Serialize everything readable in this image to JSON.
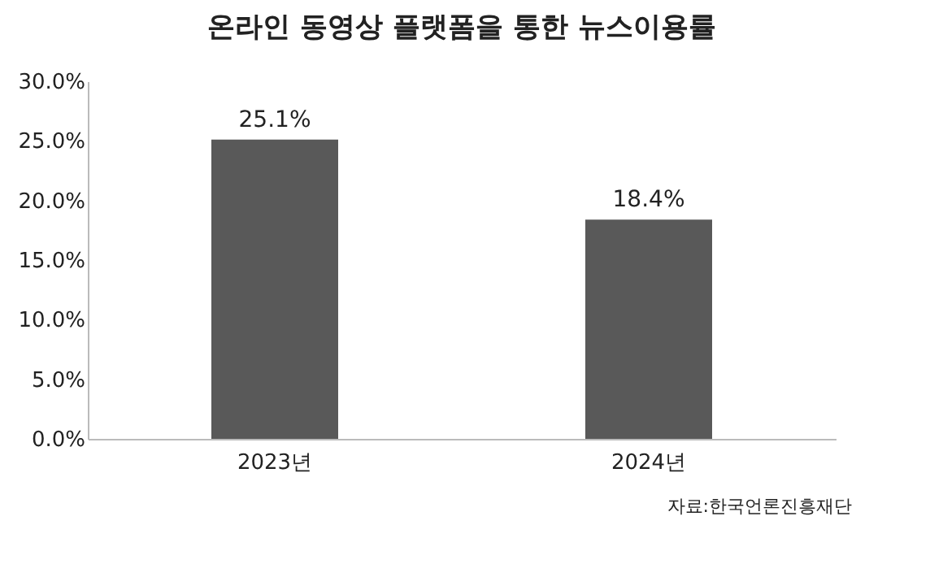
{
  "chart_data": {
    "type": "bar",
    "title": "온라인 동영상 플랫폼을 통한 뉴스이용률",
    "categories": [
      "2023년",
      "2024년"
    ],
    "values": [
      25.1,
      18.4
    ],
    "color": "#595959",
    "value_labels": [
      "25.1%",
      "18.4%"
    ],
    "ylim": [
      0,
      30
    ],
    "yticks": [
      {
        "value": 0,
        "label": "0.0%"
      },
      {
        "value": 5,
        "label": "5.0%"
      },
      {
        "value": 10,
        "label": "10.0%"
      },
      {
        "value": 15,
        "label": "15.0%"
      },
      {
        "value": 20,
        "label": "20.0%"
      },
      {
        "value": 25,
        "label": "25.0%"
      },
      {
        "value": 30,
        "label": "30.0%"
      }
    ],
    "grid": false,
    "annotations": [
      "자료:한국언론진흥재단"
    ]
  }
}
